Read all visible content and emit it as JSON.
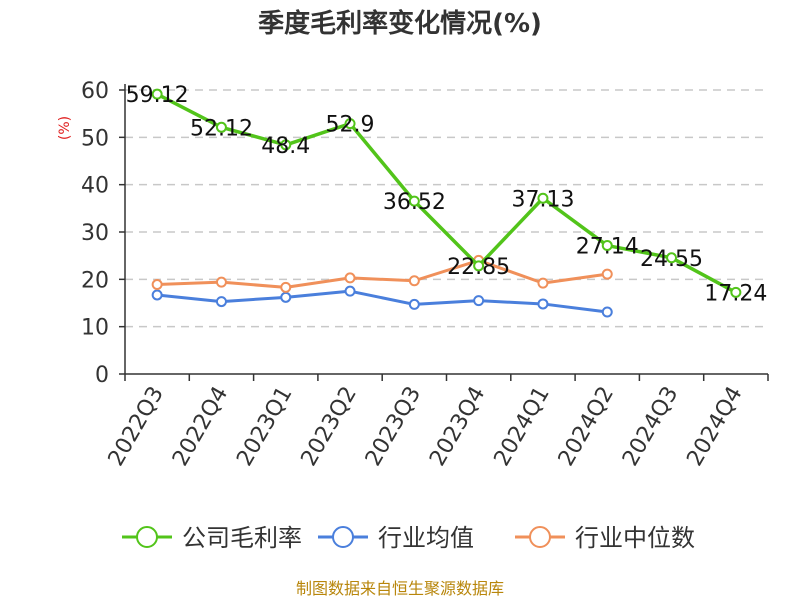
{
  "chart_data": {
    "type": "line",
    "title": "季度毛利率变化情况(%)",
    "ylabel": "(%)",
    "xlabel": "",
    "categories": [
      "2022Q3",
      "2022Q4",
      "2023Q1",
      "2023Q2",
      "2023Q3",
      "2023Q4",
      "2024Q1",
      "2024Q2",
      "2024Q3",
      "2024Q4"
    ],
    "ylim": [
      0,
      60
    ],
    "yticks": [
      0,
      10,
      20,
      30,
      40,
      50,
      60
    ],
    "grid": "horizontal-dashed",
    "legend_position": "bottom",
    "series": [
      {
        "name": "公司毛利率",
        "color": "#52c41a",
        "values": [
          59.12,
          52.12,
          48.4,
          52.9,
          36.52,
          22.85,
          37.13,
          27.14,
          24.55,
          17.24
        ],
        "labels": [
          "59.12",
          "52.12",
          "48.4",
          "52.9",
          "36.52",
          "22.85",
          "37.13",
          "27.14",
          "24.55",
          "17.24"
        ]
      },
      {
        "name": "行业均值",
        "color": "#4a7fdc",
        "values": [
          16.7,
          15.3,
          16.2,
          17.5,
          14.7,
          15.5,
          14.8,
          13.1,
          null,
          null
        ]
      },
      {
        "name": "行业中位数",
        "color": "#f0905a",
        "values": [
          18.9,
          19.4,
          18.3,
          20.3,
          19.7,
          24.0,
          19.2,
          21.1,
          null,
          null
        ]
      }
    ],
    "source_note": "制图数据来自恒生聚源数据库"
  }
}
